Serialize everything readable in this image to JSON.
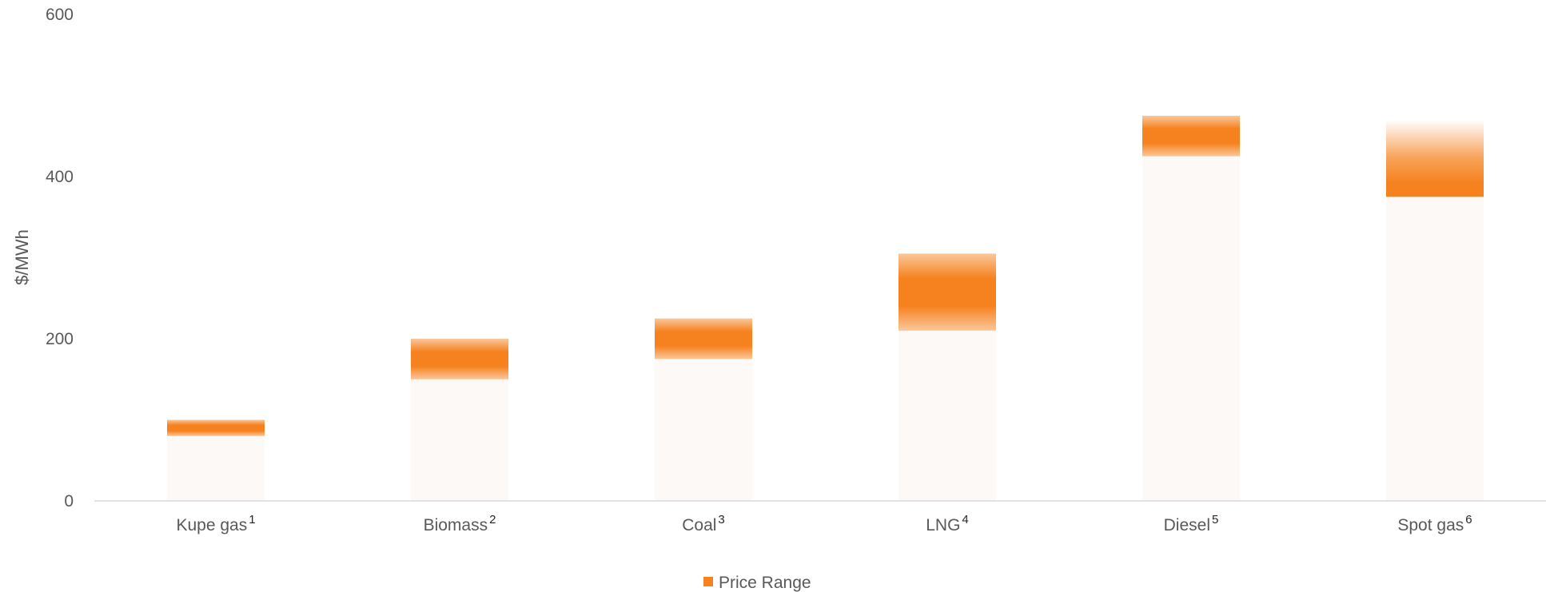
{
  "chart_data": {
    "type": "bar",
    "subtype": "floating-range",
    "title": "",
    "xlabel": "",
    "ylabel": "$/MWh",
    "ylim": [
      0,
      600
    ],
    "yticks": [
      0,
      200,
      400,
      600
    ],
    "grid": false,
    "legend_position": "bottom-center",
    "categories": [
      {
        "label": "Kupe gas",
        "note": "1"
      },
      {
        "label": "Biomass",
        "note": "2"
      },
      {
        "label": "Coal",
        "note": "3"
      },
      {
        "label": "LNG",
        "note": "4"
      },
      {
        "label": "Diesel",
        "note": "5"
      },
      {
        "label": "Spot gas",
        "note": "6"
      }
    ],
    "series": [
      {
        "name": "Price Range",
        "color": "#F5821F",
        "low": [
          80,
          150,
          175,
          210,
          425,
          375
        ],
        "high": [
          100,
          200,
          225,
          305,
          475,
          470
        ]
      }
    ]
  }
}
